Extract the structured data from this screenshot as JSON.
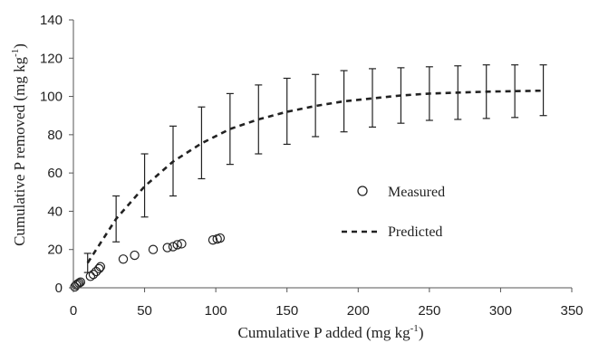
{
  "chart_data": {
    "type": "scatter",
    "title": "",
    "xlabel": {
      "main": "Cumulative P added (mg kg",
      "sup": "-1",
      "close": ")"
    },
    "ylabel": {
      "main": "Cumulative P removed (mg kg",
      "sup": "-1",
      "close": ")"
    },
    "xlim": [
      0,
      350
    ],
    "ylim": [
      0,
      140
    ],
    "xticks": [
      0,
      50,
      100,
      150,
      200,
      250,
      300,
      350
    ],
    "yticks": [
      0,
      20,
      40,
      60,
      80,
      100,
      120,
      140
    ],
    "grid": false,
    "legend_position": "right",
    "series": [
      {
        "name": "Measured",
        "kind": "scatter",
        "marker": "open-circle",
        "x": [
          1,
          2,
          3,
          4,
          5,
          12,
          14,
          16,
          18,
          19,
          35,
          43,
          56,
          66,
          70,
          73,
          76,
          98,
          101,
          103
        ],
        "y": [
          0.5,
          1.5,
          2.0,
          2.5,
          3.0,
          6.0,
          7.0,
          8.5,
          10.0,
          11.0,
          15.0,
          17.0,
          20.0,
          21.0,
          21.5,
          22.5,
          23.0,
          25.0,
          25.5,
          26.0
        ]
      },
      {
        "name": "Predicted",
        "kind": "line",
        "style": "dashed",
        "x": [
          10,
          30,
          50,
          70,
          90,
          110,
          130,
          150,
          170,
          190,
          210,
          230,
          250,
          270,
          290,
          310,
          330
        ],
        "y": [
          13,
          36,
          53,
          66,
          75.5,
          83,
          88,
          92,
          95,
          97.5,
          99,
          100.5,
          101.5,
          102,
          102.5,
          102.8,
          103
        ],
        "error_low": [
          8,
          24,
          37,
          48,
          57,
          64.5,
          70,
          75,
          79,
          81.5,
          84,
          86,
          87.5,
          88,
          88.5,
          89,
          90
        ],
        "error_high": [
          18,
          48,
          70,
          84.5,
          94.5,
          101.5,
          106,
          109.5,
          111.5,
          113.5,
          114.5,
          115,
          115.5,
          116,
          116.5,
          116.5,
          116.5
        ]
      }
    ]
  },
  "legend": {
    "measured_label": "Measured",
    "predicted_label": "Predicted"
  }
}
